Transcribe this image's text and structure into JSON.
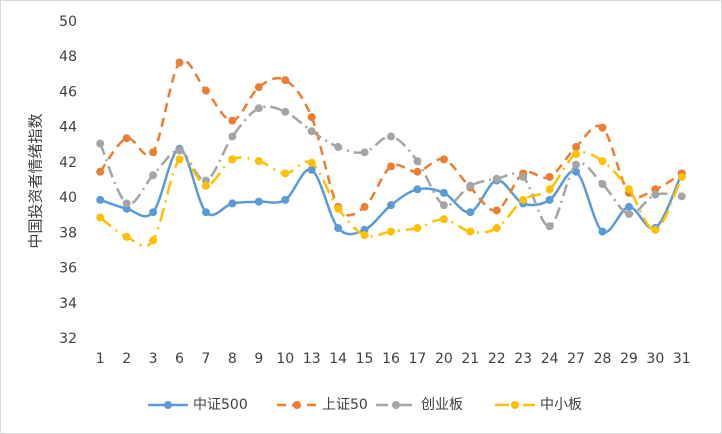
{
  "chart_data": {
    "type": "line",
    "y_label": "中国投资者情绪指数",
    "categories": [
      "1",
      "2",
      "3",
      "6",
      "7",
      "8",
      "9",
      "10",
      "13",
      "14",
      "15",
      "16",
      "17",
      "20",
      "21",
      "22",
      "23",
      "24",
      "27",
      "28",
      "29",
      "30",
      "31"
    ],
    "series": [
      {
        "name": "中证500",
        "color": "#5b9bd5",
        "dash": "solid",
        "values": [
          39.9,
          39.4,
          39.2,
          42.8,
          39.2,
          39.7,
          39.8,
          39.9,
          41.6,
          38.3,
          38.2,
          39.6,
          40.5,
          40.3,
          39.2,
          41.0,
          39.7,
          39.9,
          41.5,
          38.1,
          39.5,
          38.3,
          41.4
        ]
      },
      {
        "name": "上证50",
        "color": "#ed7d31",
        "dash": "dash",
        "values": [
          41.5,
          43.4,
          42.6,
          47.7,
          46.1,
          44.4,
          46.3,
          46.7,
          44.6,
          39.5,
          39.5,
          41.8,
          41.5,
          42.2,
          40.6,
          39.3,
          41.4,
          41.2,
          42.9,
          44.0,
          40.3,
          40.5,
          41.4
        ]
      },
      {
        "name": "创业板",
        "color": "#a5a5a5",
        "dash": "dashdot",
        "values": [
          43.1,
          39.7,
          41.3,
          42.7,
          41.0,
          43.5,
          45.1,
          44.9,
          43.8,
          42.9,
          42.6,
          43.5,
          42.1,
          39.6,
          40.7,
          41.1,
          41.2,
          38.4,
          41.9,
          40.8,
          39.1,
          40.2,
          40.1
        ]
      },
      {
        "name": "中小板",
        "color": "#ffc000",
        "dash": "longdashdot",
        "values": [
          38.9,
          37.8,
          37.6,
          42.2,
          40.7,
          42.2,
          42.1,
          41.4,
          42.0,
          39.4,
          37.9,
          38.1,
          38.3,
          38.8,
          38.1,
          38.3,
          39.9,
          40.5,
          42.5,
          42.1,
          40.5,
          38.2,
          41.2
        ]
      }
    ],
    "ylim": [
      32,
      50
    ],
    "yticks": [
      32,
      34,
      36,
      38,
      40,
      42,
      44,
      46,
      48,
      50
    ],
    "grid": false,
    "legend": "bottom"
  }
}
